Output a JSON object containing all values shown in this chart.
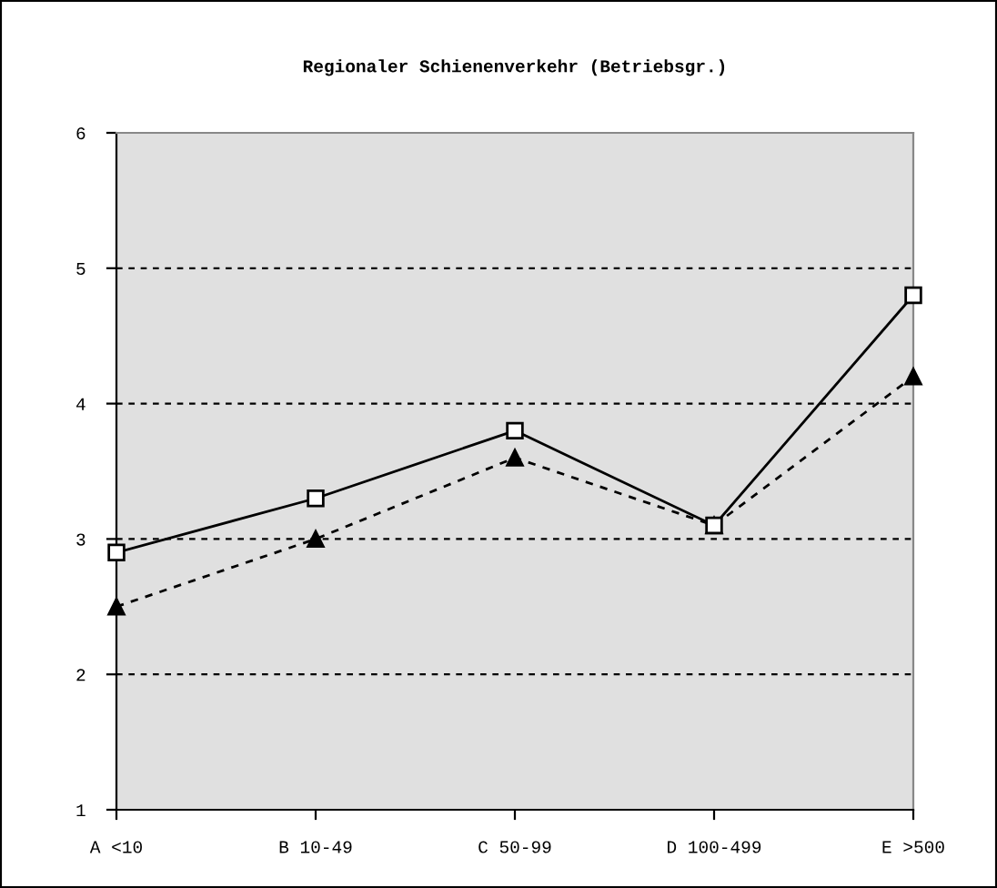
{
  "chart_data": {
    "type": "line",
    "title": "Regionaler Schienenverkehr (Betriebsgr.)",
    "categories": [
      "A <10",
      "B 10-49",
      "C 50-99",
      "D 100-499",
      "E >500"
    ],
    "series": [
      {
        "color": "#000000",
        "values": [
          2.9,
          3.3,
          3.8,
          3.1,
          4.8
        ],
        "marker": "square",
        "line_style": "solid"
      },
      {
        "color": "#000000",
        "values": [
          2.5,
          3.0,
          3.6,
          3.1,
          4.2
        ],
        "marker": "triangle",
        "line_style": "dashed"
      }
    ],
    "ylim": [
      1,
      6
    ],
    "yticks": [
      1,
      2,
      3,
      4,
      5,
      6
    ],
    "grid": "y"
  }
}
